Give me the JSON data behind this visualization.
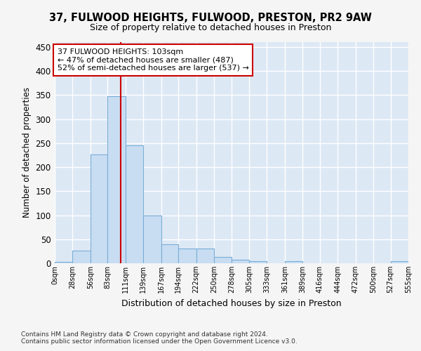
{
  "title1": "37, FULWOOD HEIGHTS, FULWOOD, PRESTON, PR2 9AW",
  "title2": "Size of property relative to detached houses in Preston",
  "xlabel": "Distribution of detached houses by size in Preston",
  "ylabel": "Number of detached properties",
  "footnote1": "Contains HM Land Registry data © Crown copyright and database right 2024.",
  "footnote2": "Contains public sector information licensed under the Open Government Licence v3.0.",
  "annotation_title": "37 FULWOOD HEIGHTS: 103sqm",
  "annotation_line1": "← 47% of detached houses are smaller (487)",
  "annotation_line2": "52% of semi-detached houses are larger (537) →",
  "bar_color": "#c8ddf2",
  "bar_edge_color": "#7aaed6",
  "line_color": "#cc0000",
  "bg_color": "#dde8f5",
  "fig_bg_color": "#f5f5f5",
  "grid_color": "#ffffff",
  "bins": [
    0,
    28,
    56,
    83,
    111,
    139,
    167,
    194,
    222,
    250,
    278,
    305,
    333,
    361,
    389,
    416,
    444,
    472,
    500,
    527,
    555
  ],
  "bin_labels": [
    "0sqm",
    "28sqm",
    "56sqm",
    "83sqm",
    "111sqm",
    "139sqm",
    "167sqm",
    "194sqm",
    "222sqm",
    "250sqm",
    "278sqm",
    "305sqm",
    "333sqm",
    "361sqm",
    "389sqm",
    "416sqm",
    "444sqm",
    "472sqm",
    "500sqm",
    "527sqm",
    "555sqm"
  ],
  "counts": [
    3,
    26,
    227,
    347,
    246,
    100,
    40,
    30,
    30,
    13,
    8,
    5,
    0,
    4,
    0,
    0,
    0,
    0,
    0,
    4
  ],
  "property_size": 103,
  "ylim": [
    0,
    460
  ],
  "yticks": [
    0,
    50,
    100,
    150,
    200,
    250,
    300,
    350,
    400,
    450
  ]
}
